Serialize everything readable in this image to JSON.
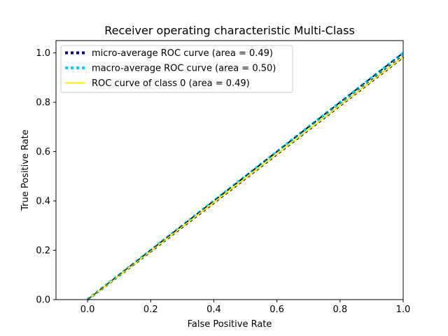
{
  "chart_data": {
    "type": "line",
    "title": "Receiver operating characteristic Multi-Class",
    "xlabel": "False Positive Rate",
    "ylabel": "True Positive Rate",
    "xlim": [
      -0.1,
      1.0
    ],
    "ylim": [
      0.0,
      1.05
    ],
    "xticks": [
      0.0,
      0.2,
      0.4,
      0.6,
      0.8,
      1.0
    ],
    "yticks": [
      0.0,
      0.2,
      0.4,
      0.6,
      0.8,
      1.0
    ],
    "xtick_labels": [
      "0.0",
      "0.2",
      "0.4",
      "0.6",
      "0.8",
      "1.0"
    ],
    "ytick_labels": [
      "0.0",
      "0.2",
      "0.4",
      "0.6",
      "0.8",
      "1.0"
    ],
    "grid": false,
    "legend_position": "top-left",
    "series": [
      {
        "name": "micro-average ROC curve (area = 0.49)",
        "color": "#000080",
        "style": "dotted",
        "x": [
          0.0,
          1.0
        ],
        "y": [
          0.0,
          0.985
        ]
      },
      {
        "name": "macro-average ROC curve (area = 0.50)",
        "color": "#00d8ff",
        "style": "dotted",
        "x": [
          0.0,
          1.0
        ],
        "y": [
          0.0,
          1.0
        ]
      },
      {
        "name": "ROC curve of class 0 (area = 0.49)",
        "color": "#ffec00",
        "style": "solid",
        "x": [
          0.0,
          1.0
        ],
        "y": [
          0.0,
          0.985
        ]
      }
    ],
    "reference_line": {
      "color": "#000000",
      "style": "dashed",
      "x": [
        0.0,
        1.0
      ],
      "y": [
        0.0,
        1.0
      ]
    }
  }
}
